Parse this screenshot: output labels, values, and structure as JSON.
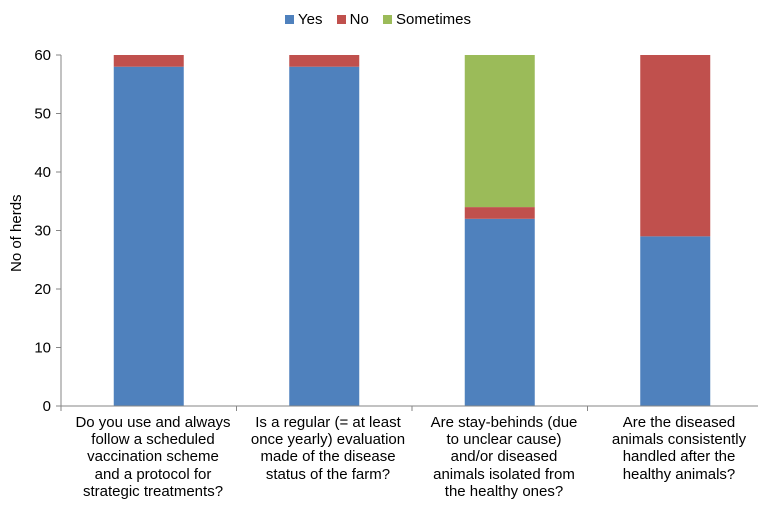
{
  "chart_data": {
    "type": "bar",
    "stacked": true,
    "title": "",
    "xlabel": "",
    "ylabel": "No of herds",
    "ylim": [
      0,
      60
    ],
    "yticks": [
      0,
      10,
      20,
      30,
      40,
      50,
      60
    ],
    "grid": false,
    "legend_position": "top-center",
    "categories": [
      "Do you use and always\nfollow a scheduled\nvaccination scheme\nand a protocol for\nstrategic treatments?",
      "Is a regular (= at least\nonce yearly) evaluation\nmade of the disease\nstatus of the farm?",
      "Are stay-behinds (due\nto unclear cause)\nand/or diseased\nanimals isolated from\nthe healthy ones?",
      "Are the diseased\nanimals consistently\nhandled after the\nhealthy animals?"
    ],
    "series": [
      {
        "name": "Yes",
        "color": "#4F81BD",
        "values": [
          58,
          58,
          32,
          29
        ]
      },
      {
        "name": "No",
        "color": "#C0504D",
        "values": [
          2,
          2,
          2,
          31
        ]
      },
      {
        "name": "Sometimes",
        "color": "#9BBB59",
        "values": [
          0,
          0,
          26,
          0
        ]
      }
    ]
  }
}
